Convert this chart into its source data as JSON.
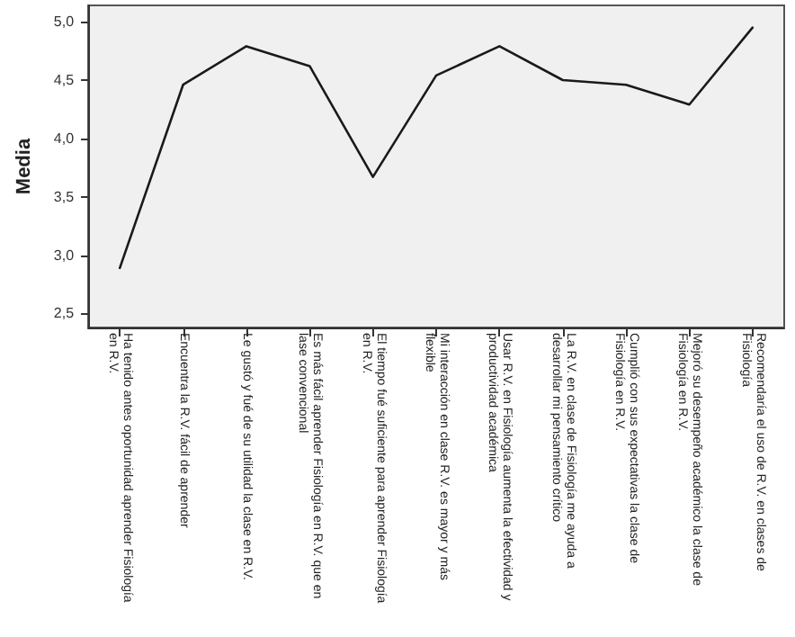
{
  "chart_data": {
    "type": "line",
    "ylabel": "Media",
    "categories": [
      "Ha tenido antes oportunidad aprender Fisiología en R.V.",
      "Encuentra la R.V. fácil de aprender",
      "Le gustó y fué de su utilidad la clase en R.V.",
      "Es más fácil aprender Fisiología en R.V. que en lase convencional",
      "El tiempo fué suficiente para aprender Fisiología en R.V.",
      "Mi interacción en clase R.V. es mayor y más flexible",
      "Usar R.V. en Fisiología aumenta la efectividad y productividad académica",
      "La R.V. en clase de Fisiología me ayuda a desarrollar mi pensamiento crítico",
      "Cumplió con sus expectativas la clase de Fisiología en R.V.",
      "Mejoró su desempeño académico la clase de Fisiología en R.V.",
      "Recomendaría el uso de R.V. en clases de Fisiología"
    ],
    "series": [
      {
        "color": "#1a1a1a",
        "values": [
          2.89,
          4.46,
          4.79,
          4.62,
          3.67,
          4.54,
          4.79,
          4.5,
          4.46,
          4.29,
          4.95
        ]
      }
    ],
    "ylim": [
      2.38,
      5.14
    ],
    "yticks": [
      {
        "value": 2.5,
        "label": "2,5"
      },
      {
        "value": 3,
        "label": "3,0"
      },
      {
        "value": 3.5,
        "label": "3,5"
      },
      {
        "value": 4,
        "label": "4,0"
      },
      {
        "value": 4.5,
        "label": "4,5"
      },
      {
        "value": 5,
        "label": "5,0"
      }
    ],
    "line_style": "solid"
  }
}
